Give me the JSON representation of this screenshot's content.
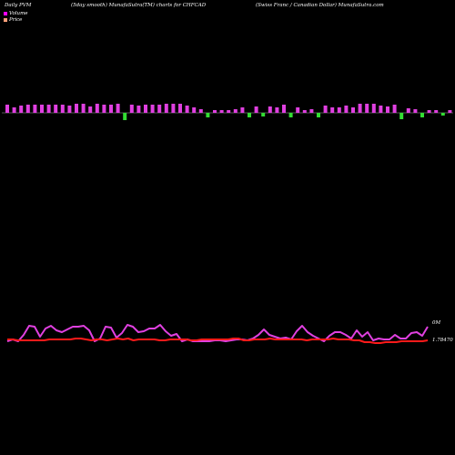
{
  "header": {
    "left": "Daily PVM",
    "center": "(5day smooth) MunafaSutra(TM) charts for CHFCAD",
    "right": "(Swiss Franc / Canadian Dollar) MunafaSutra.com"
  },
  "legend": {
    "volume_label": "Volume",
    "price_label": "Price",
    "volume_color": "#ff00ff",
    "price_color": "#ffa07a"
  },
  "colors": {
    "up_volume": "#e040e0",
    "down_volume": "#33dd33",
    "volume_line": "#e040e0",
    "price_line": "#ff1a1a",
    "axis_line": "#aaaaaa"
  },
  "chart_data": {
    "type": "line",
    "title": "(5day smooth) MunafaSutra(TM) charts for CHFCAD",
    "volume_axis_label": "0M",
    "price_axis_label": "1.78470",
    "volume_bars": {
      "heights": [
        9,
        6,
        8,
        9,
        9,
        9,
        9,
        9,
        9,
        8,
        10,
        10,
        7,
        10,
        9,
        9,
        10,
        -8,
        9,
        8,
        9,
        9,
        9,
        10,
        10,
        10,
        8,
        6,
        4,
        -5,
        3,
        3,
        3,
        4,
        6,
        -5,
        7,
        -4,
        7,
        6,
        9,
        -5,
        6,
        3,
        4,
        -5,
        8,
        6,
        6,
        8,
        6,
        10,
        10,
        10,
        8,
        7,
        9,
        -7,
        5,
        4,
        -5,
        3,
        3,
        -3,
        3,
        5,
        6,
        5,
        5,
        7,
        8
      ],
      "up_down": [
        "up",
        "up",
        "up",
        "up",
        "up",
        "up",
        "up",
        "up",
        "up",
        "up",
        "up",
        "up",
        "up",
        "up",
        "up",
        "up",
        "up",
        "down",
        "up",
        "up",
        "up",
        "up",
        "up",
        "up",
        "up",
        "up",
        "up",
        "up",
        "up",
        "down",
        "up",
        "up",
        "up",
        "up",
        "up",
        "down",
        "up",
        "down",
        "up",
        "up",
        "up",
        "down",
        "up",
        "up",
        "up",
        "down",
        "up",
        "up",
        "up",
        "up",
        "up",
        "up",
        "up",
        "up",
        "up",
        "up",
        "up",
        "down",
        "up",
        "up",
        "down",
        "up",
        "up",
        "down",
        "up",
        "up",
        "up",
        "up",
        "up",
        "up",
        "up"
      ]
    },
    "volume_line": [
      30,
      28,
      30,
      23,
      13,
      14,
      25,
      16,
      13,
      18,
      20,
      17,
      14,
      14,
      13,
      18,
      30,
      27,
      14,
      15,
      26,
      21,
      12,
      14,
      20,
      19,
      16,
      16,
      12,
      19,
      24,
      22,
      30,
      28,
      30,
      30,
      30,
      30,
      29,
      29,
      30,
      29,
      28,
      28,
      29,
      27,
      23,
      17,
      23,
      25,
      27,
      26,
      28,
      19,
      13,
      20,
      24,
      27,
      30,
      24,
      20,
      20,
      23,
      27,
      18,
      25,
      20,
      29,
      27,
      28,
      28,
      23,
      27,
      27,
      21,
      20,
      24,
      14
    ],
    "price_line": [
      31,
      31,
      32,
      32,
      32,
      32,
      32,
      32,
      31,
      31,
      31,
      31,
      31,
      30,
      30,
      31,
      32,
      31,
      31,
      32,
      31,
      30,
      31,
      30,
      32,
      31,
      31,
      31,
      31,
      32,
      32,
      31,
      31,
      31,
      31,
      32,
      32,
      31,
      31,
      31,
      31,
      31,
      31,
      30,
      30,
      32,
      32,
      31,
      31,
      31,
      30,
      31,
      31,
      31,
      31,
      31,
      31,
      32,
      31,
      31,
      31,
      31,
      30,
      31,
      31,
      31,
      32,
      32,
      34,
      34,
      35,
      35,
      34,
      34,
      34,
      33,
      33,
      33,
      33,
      33,
      32
    ]
  }
}
